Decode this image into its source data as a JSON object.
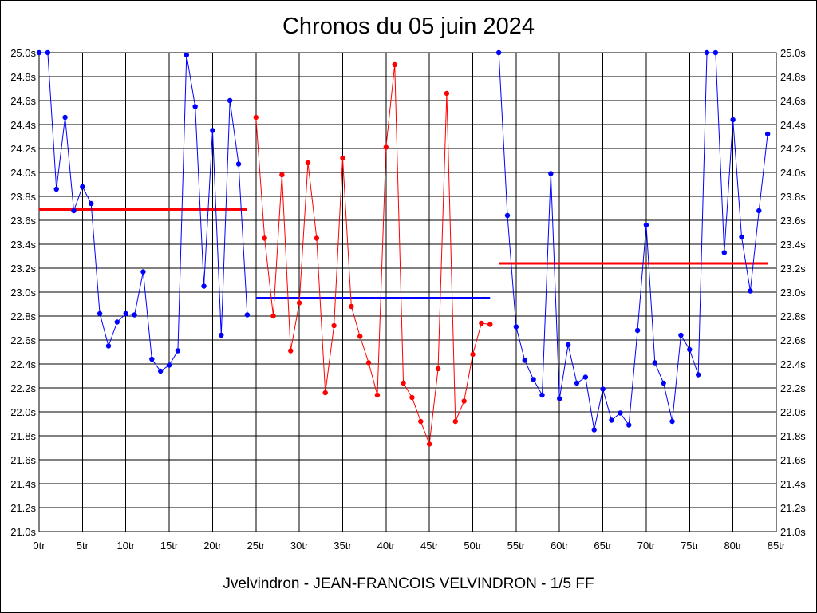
{
  "chart_data": {
    "type": "line",
    "title": "Chronos du 05 juin 2024",
    "footer": "Jvelvindron - JEAN-FRANCOIS VELVINDRON - 1/5 FF",
    "xlim": [
      0,
      85
    ],
    "ylim": [
      21.0,
      25.0
    ],
    "grid": true,
    "x_ticks": [
      0,
      5,
      10,
      15,
      20,
      25,
      30,
      35,
      40,
      45,
      50,
      55,
      60,
      65,
      70,
      75,
      80,
      85
    ],
    "x_tick_labels": [
      "0tr",
      "5tr",
      "10tr",
      "15tr",
      "20tr",
      "25tr",
      "30tr",
      "35tr",
      "40tr",
      "45tr",
      "50tr",
      "55tr",
      "60tr",
      "65tr",
      "70tr",
      "75tr",
      "80tr",
      "85tr"
    ],
    "y_ticks": [
      21.0,
      21.2,
      21.4,
      21.6,
      21.8,
      22.0,
      22.2,
      22.4,
      22.6,
      22.8,
      23.0,
      23.2,
      23.4,
      23.6,
      23.8,
      24.0,
      24.2,
      24.4,
      24.6,
      24.8,
      25.0
    ],
    "y_tick_labels": [
      "21.0s",
      "21.2s",
      "21.4s",
      "21.6s",
      "21.8s",
      "22.0s",
      "22.2s",
      "22.4s",
      "22.6s",
      "22.8s",
      "23.0s",
      "23.2s",
      "23.4s",
      "23.6s",
      "23.8s",
      "24.0s",
      "24.2s",
      "24.4s",
      "24.6s",
      "24.8s",
      "25.0s"
    ],
    "series": [
      {
        "color": "#0000ff",
        "x": [
          0,
          1,
          2,
          3,
          4,
          5,
          6,
          7,
          8,
          9,
          10,
          11,
          12,
          13,
          14,
          15,
          16,
          17,
          18,
          19,
          20,
          21,
          22,
          23,
          24
        ],
        "y": [
          25.0,
          25.0,
          23.86,
          24.46,
          23.68,
          23.88,
          23.74,
          22.82,
          22.55,
          22.75,
          22.82,
          22.81,
          23.17,
          22.44,
          22.34,
          22.39,
          22.51,
          24.98,
          24.55,
          23.05,
          24.35,
          22.64,
          24.6,
          24.07,
          22.81
        ]
      },
      {
        "color": "#ff0000",
        "x": [
          25,
          26,
          27,
          28,
          29,
          30,
          31,
          32,
          33,
          34,
          35,
          36,
          37,
          38,
          39,
          40,
          41,
          42,
          43,
          44,
          45,
          46,
          47,
          48,
          49,
          50,
          51,
          52
        ],
        "y": [
          24.46,
          23.45,
          22.8,
          23.98,
          22.51,
          22.91,
          24.08,
          23.45,
          22.16,
          22.72,
          24.12,
          22.88,
          22.63,
          22.41,
          22.14,
          24.21,
          24.9,
          22.24,
          22.12,
          21.92,
          21.73,
          22.36,
          24.66,
          21.92,
          22.09,
          22.48,
          22.74,
          22.73
        ]
      },
      {
        "color": "#0000ff",
        "x": [
          53,
          54,
          55,
          56,
          57,
          58,
          59,
          60,
          61,
          62,
          63,
          64,
          65,
          66,
          67,
          68,
          69,
          70,
          71,
          72,
          73,
          74,
          75,
          76,
          77,
          78,
          79,
          80,
          81,
          82,
          83,
          84
        ],
        "y": [
          25.0,
          23.64,
          22.71,
          22.43,
          22.27,
          22.14,
          23.99,
          22.11,
          22.56,
          22.24,
          22.29,
          21.85,
          22.19,
          21.93,
          21.99,
          21.89,
          22.68,
          23.56,
          22.41,
          22.24,
          21.92,
          22.64,
          22.52,
          22.31,
          25.0,
          25.0,
          23.33,
          24.44,
          23.46,
          23.01,
          23.68,
          24.32
        ]
      }
    ],
    "averages": [
      {
        "color": "#ff0000",
        "x_start": 0,
        "x_end": 24,
        "value": 23.69
      },
      {
        "color": "#0000ff",
        "x_start": 25,
        "x_end": 52,
        "value": 22.95
      },
      {
        "color": "#ff0000",
        "x_start": 53,
        "x_end": 84,
        "value": 23.24
      }
    ]
  }
}
